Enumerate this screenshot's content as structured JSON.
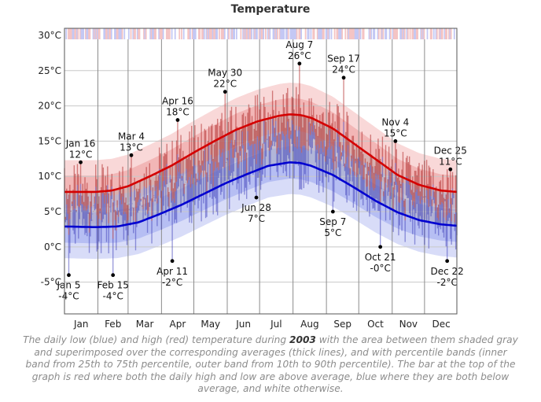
{
  "chart_data": {
    "type": "line",
    "title": "Temperature",
    "y_ticks": [
      "-5°C",
      "0°C",
      "5°C",
      "10°C",
      "15°C",
      "20°C",
      "25°C",
      "30°C"
    ],
    "y_tick_values": [
      -5,
      0,
      5,
      10,
      15,
      20,
      25,
      30
    ],
    "ylim": [
      -9.5,
      31
    ],
    "x_ticks": [
      "Jan",
      "Feb",
      "Mar",
      "Apr",
      "May",
      "Jun",
      "Jul",
      "Aug",
      "Sep",
      "Oct",
      "Nov",
      "Dec"
    ],
    "grid": true,
    "series": [
      {
        "color": "#d40000",
        "x": [
          1,
          30,
          45,
          60,
          80,
          100,
          120,
          140,
          160,
          180,
          200,
          210,
          220,
          230,
          250,
          270,
          290,
          310,
          330,
          350,
          365
        ],
        "values": [
          7.8,
          7.8,
          8.0,
          8.6,
          10.0,
          11.5,
          13.3,
          15.0,
          16.6,
          17.8,
          18.6,
          18.8,
          18.7,
          18.3,
          16.8,
          14.6,
          12.4,
          10.2,
          8.8,
          8.0,
          7.8
        ]
      },
      {
        "color": "#0000d0",
        "x": [
          1,
          30,
          50,
          70,
          90,
          110,
          130,
          150,
          170,
          190,
          210,
          220,
          230,
          250,
          270,
          290,
          310,
          330,
          350,
          365
        ],
        "values": [
          2.9,
          2.8,
          2.9,
          3.5,
          4.7,
          6.0,
          7.5,
          9.0,
          10.3,
          11.5,
          12.0,
          11.9,
          11.5,
          10.2,
          8.4,
          6.5,
          4.9,
          3.8,
          3.2,
          3.0
        ]
      }
    ],
    "annotations": [
      {
        "day": 5,
        "value": -4,
        "date": "Jan 5",
        "temp": "-4°C"
      },
      {
        "day": 16,
        "value": 12,
        "date": "Jan 16",
        "temp": "12°C"
      },
      {
        "day": 46,
        "value": -4,
        "date": "Feb 15",
        "temp": "-4°C"
      },
      {
        "day": 63,
        "value": 13,
        "date": "Mar 4",
        "temp": "13°C"
      },
      {
        "day": 101,
        "value": -2,
        "date": "Apr 11",
        "temp": "-2°C"
      },
      {
        "day": 106,
        "value": 18,
        "date": "Apr 16",
        "temp": "18°C"
      },
      {
        "day": 150,
        "value": 22,
        "date": "May 30",
        "temp": "22°C"
      },
      {
        "day": 179,
        "value": 7,
        "date": "Jun 28",
        "temp": "7°C"
      },
      {
        "day": 219,
        "value": 26,
        "date": "Aug 7",
        "temp": "26°C"
      },
      {
        "day": 250,
        "value": 5,
        "date": "Sep 7",
        "temp": "5°C"
      },
      {
        "day": 260,
        "value": 24,
        "date": "Sep 17",
        "temp": "24°C"
      },
      {
        "day": 294,
        "value": 0,
        "date": "Oct 21",
        "temp": "-0°C"
      },
      {
        "day": 308,
        "value": 15,
        "date": "Nov 4",
        "temp": "15°C"
      },
      {
        "day": 356,
        "value": -2,
        "date": "Dec 22",
        "temp": "-2°C"
      },
      {
        "day": 359,
        "value": 11,
        "date": "Dec 25",
        "temp": "11°C"
      }
    ]
  },
  "caption": {
    "before": "The daily low (blue) and high (red) temperature during ",
    "year": "2003",
    "after": " with the area between them shaded gray and superimposed over the corresponding averages (thick lines), and with percentile bands (inner band from 25th to 75th percentile, outer band from 10th to 90th percentile). The bar at the top of the graph is red where both the daily high and low are above average, blue where they are both below average, and white otherwise."
  }
}
